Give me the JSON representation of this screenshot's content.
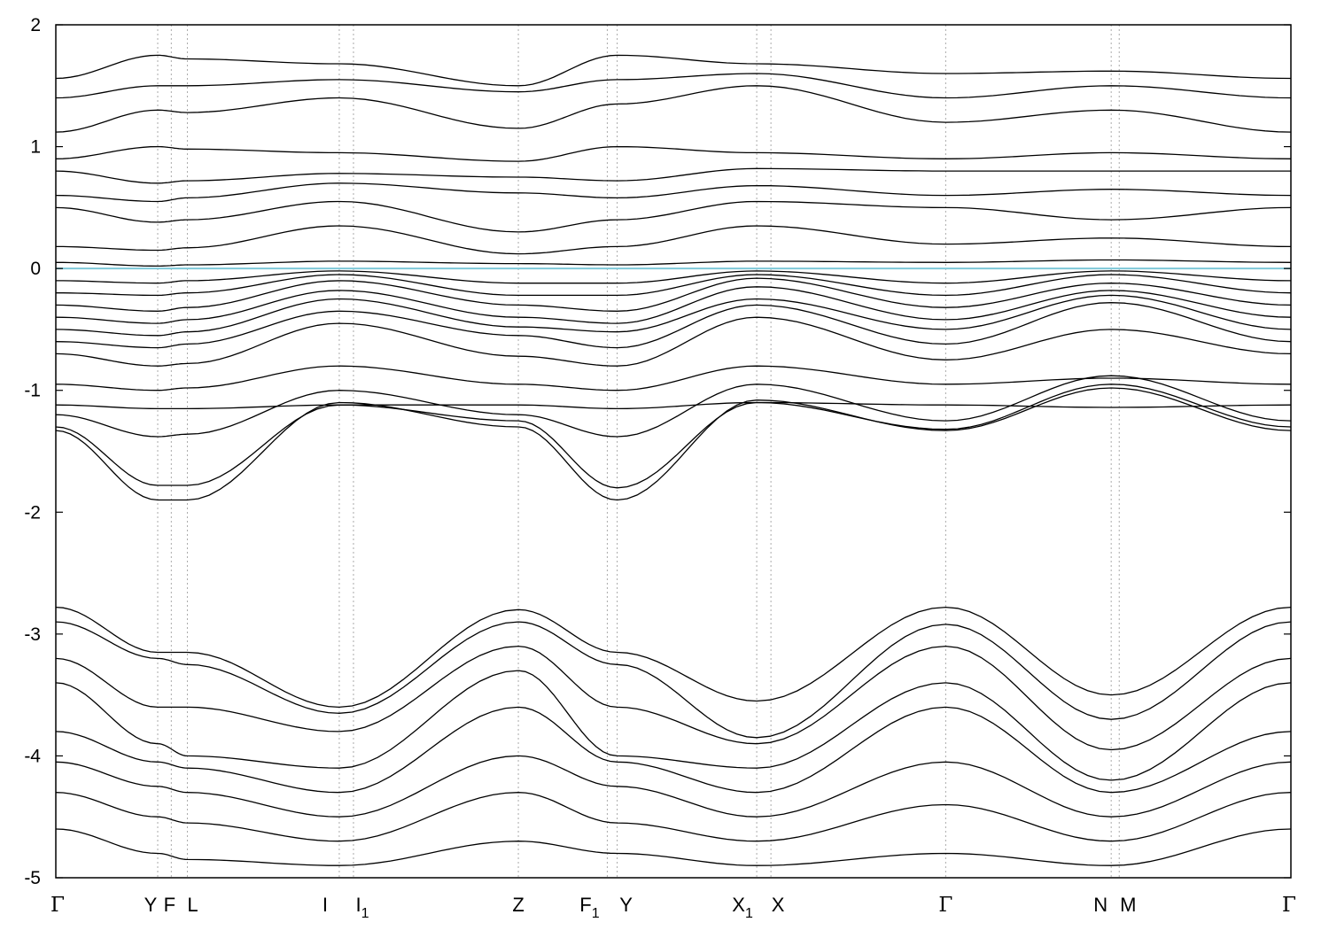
{
  "chart_data": {
    "type": "line",
    "title": "",
    "xlabel": "",
    "ylabel": "",
    "ylim": [
      -5,
      2
    ],
    "y_ticks": [
      "2",
      "1",
      "0",
      "-1",
      "-2",
      "-3",
      "-4",
      "-5"
    ],
    "y_tick_values": [
      2,
      1,
      0,
      -1,
      -2,
      -3,
      -4,
      -5
    ],
    "grid": "vertical dashed lines at high-symmetry k-points",
    "line_color": "#000000",
    "fermi_line_color": "#7ec8d8",
    "fermi_level": 0.0,
    "kpoints": [
      {
        "main": "Γ",
        "sub": "",
        "x": 0.0
      },
      {
        "main": "Y",
        "sub": "",
        "x": 0.0825
      },
      {
        "main": "F",
        "sub": "",
        "x": 0.0935
      },
      {
        "main": "L",
        "sub": "",
        "x": 0.1065
      },
      {
        "main": "I",
        "sub": "",
        "x": 0.2295
      },
      {
        "main": "I",
        "sub": "1",
        "x": 0.241
      },
      {
        "main": "Z",
        "sub": "",
        "x": 0.3745
      },
      {
        "main": "F",
        "sub": "1",
        "x": 0.4465
      },
      {
        "main": "Y",
        "sub": "",
        "x": 0.4545
      },
      {
        "main": "X",
        "sub": "1",
        "x": 0.5675
      },
      {
        "main": "X",
        "sub": "",
        "x": 0.579
      },
      {
        "main": "Γ",
        "sub": "",
        "x": 0.7205
      },
      {
        "main": "N",
        "sub": "",
        "x": 0.8545
      },
      {
        "main": "M",
        "sub": "",
        "x": 0.861
      },
      {
        "main": "Γ",
        "sub": "",
        "x": 1.0
      }
    ],
    "series": [
      {
        "x": [
          0,
          0.0825,
          0.1065,
          0.2295,
          0.3745,
          0.4545,
          0.5675,
          0.7205,
          0.8545,
          1.0
        ],
        "values": [
          -1.3,
          -1.78,
          -1.78,
          -1.12,
          -1.25,
          -1.8,
          -1.1,
          -1.32,
          -0.95,
          -1.3
        ]
      },
      {
        "x": [
          0,
          0.0825,
          0.1065,
          0.2295,
          0.3745,
          0.4545,
          0.5675,
          0.7205,
          0.8545,
          1.0
        ],
        "values": [
          -1.33,
          -1.9,
          -1.9,
          -1.1,
          -1.3,
          -1.9,
          -1.08,
          -1.33,
          -0.98,
          -1.33
        ]
      },
      {
        "x": [
          0,
          0.0825,
          0.1065,
          0.2295,
          0.3745,
          0.4545,
          0.5675,
          0.7205,
          0.8545,
          1.0
        ],
        "values": [
          -1.2,
          -1.38,
          -1.36,
          -1.0,
          -1.2,
          -1.38,
          -0.95,
          -1.25,
          -0.88,
          -1.25
        ]
      },
      {
        "x": [
          0,
          0.0825,
          0.1065,
          0.2295,
          0.3745,
          0.4545,
          0.5675,
          0.7205,
          0.8545,
          1.0
        ],
        "values": [
          -1.12,
          -1.15,
          -1.15,
          -1.12,
          -1.12,
          -1.15,
          -1.1,
          -1.12,
          -1.14,
          -1.12
        ]
      },
      {
        "x": [
          0,
          0.0825,
          0.1065,
          0.2295,
          0.3745,
          0.4545,
          0.5675,
          0.7205,
          0.8545,
          1.0
        ],
        "values": [
          -0.95,
          -1.0,
          -0.98,
          -0.8,
          -0.95,
          -1.0,
          -0.8,
          -0.95,
          -0.9,
          -0.95
        ]
      },
      {
        "x": [
          0,
          0.0825,
          0.1065,
          0.2295,
          0.3745,
          0.4545,
          0.5675,
          0.7205,
          0.8545,
          1.0
        ],
        "values": [
          -0.7,
          -0.8,
          -0.78,
          -0.45,
          -0.72,
          -0.8,
          -0.4,
          -0.75,
          -0.5,
          -0.7
        ]
      },
      {
        "x": [
          0,
          0.0825,
          0.1065,
          0.2295,
          0.3745,
          0.4545,
          0.5675,
          0.7205,
          0.8545,
          1.0
        ],
        "values": [
          -0.6,
          -0.65,
          -0.62,
          -0.35,
          -0.55,
          -0.65,
          -0.3,
          -0.62,
          -0.28,
          -0.6
        ]
      },
      {
        "x": [
          0,
          0.0825,
          0.1065,
          0.2295,
          0.3745,
          0.4545,
          0.5675,
          0.7205,
          0.8545,
          1.0
        ],
        "values": [
          -0.5,
          -0.55,
          -0.52,
          -0.25,
          -0.48,
          -0.52,
          -0.25,
          -0.5,
          -0.22,
          -0.5
        ]
      },
      {
        "x": [
          0,
          0.0825,
          0.1065,
          0.2295,
          0.3745,
          0.4545,
          0.5675,
          0.7205,
          0.8545,
          1.0
        ],
        "values": [
          -0.4,
          -0.45,
          -0.42,
          -0.18,
          -0.4,
          -0.45,
          -0.15,
          -0.42,
          -0.18,
          -0.4
        ]
      },
      {
        "x": [
          0,
          0.0825,
          0.1065,
          0.2295,
          0.3745,
          0.4545,
          0.5675,
          0.7205,
          0.8545,
          1.0
        ],
        "values": [
          -0.3,
          -0.35,
          -0.32,
          -0.1,
          -0.3,
          -0.35,
          -0.08,
          -0.32,
          -0.12,
          -0.3
        ]
      },
      {
        "x": [
          0,
          0.0825,
          0.1065,
          0.2295,
          0.3745,
          0.4545,
          0.5675,
          0.7205,
          0.8545,
          1.0
        ],
        "values": [
          -0.2,
          -0.22,
          -0.2,
          -0.05,
          -0.22,
          -0.22,
          -0.05,
          -0.22,
          -0.05,
          -0.2
        ]
      },
      {
        "x": [
          0,
          0.0825,
          0.1065,
          0.2295,
          0.3745,
          0.4545,
          0.5675,
          0.7205,
          0.8545,
          1.0
        ],
        "values": [
          -0.1,
          -0.12,
          -0.1,
          -0.02,
          -0.12,
          -0.12,
          -0.02,
          -0.12,
          -0.02,
          -0.1
        ]
      },
      {
        "x": [
          0,
          0.0825,
          0.1065,
          0.2295,
          0.3745,
          0.4545,
          0.5675,
          0.7205,
          0.8545,
          1.0
        ],
        "values": [
          0.05,
          0.02,
          0.03,
          0.06,
          0.04,
          0.03,
          0.06,
          0.05,
          0.07,
          0.05
        ]
      },
      {
        "x": [
          0,
          0.0825,
          0.1065,
          0.2295,
          0.3745,
          0.4545,
          0.5675,
          0.7205,
          0.8545,
          1.0
        ],
        "values": [
          0.18,
          0.15,
          0.17,
          0.35,
          0.12,
          0.18,
          0.35,
          0.2,
          0.25,
          0.18
        ]
      },
      {
        "x": [
          0,
          0.0825,
          0.1065,
          0.2295,
          0.3745,
          0.4545,
          0.5675,
          0.7205,
          0.8545,
          1.0
        ],
        "values": [
          0.5,
          0.38,
          0.4,
          0.55,
          0.3,
          0.4,
          0.55,
          0.5,
          0.4,
          0.5
        ]
      },
      {
        "x": [
          0,
          0.0825,
          0.1065,
          0.2295,
          0.3745,
          0.4545,
          0.5675,
          0.7205,
          0.8545,
          1.0
        ],
        "values": [
          0.6,
          0.55,
          0.58,
          0.7,
          0.62,
          0.58,
          0.68,
          0.6,
          0.65,
          0.6
        ]
      },
      {
        "x": [
          0,
          0.0825,
          0.1065,
          0.2295,
          0.3745,
          0.4545,
          0.5675,
          0.7205,
          0.8545,
          1.0
        ],
        "values": [
          0.8,
          0.7,
          0.72,
          0.78,
          0.75,
          0.72,
          0.82,
          0.8,
          0.8,
          0.8
        ]
      },
      {
        "x": [
          0,
          0.0825,
          0.1065,
          0.2295,
          0.3745,
          0.4545,
          0.5675,
          0.7205,
          0.8545,
          1.0
        ],
        "values": [
          0.9,
          1.0,
          0.98,
          0.95,
          0.88,
          1.0,
          0.95,
          0.9,
          0.95,
          0.9
        ]
      },
      {
        "x": [
          0,
          0.0825,
          0.1065,
          0.2295,
          0.3745,
          0.4545,
          0.5675,
          0.7205,
          0.8545,
          1.0
        ],
        "values": [
          1.12,
          1.3,
          1.28,
          1.4,
          1.15,
          1.35,
          1.5,
          1.2,
          1.3,
          1.12
        ]
      },
      {
        "x": [
          0,
          0.0825,
          0.1065,
          0.2295,
          0.3745,
          0.4545,
          0.5675,
          0.7205,
          0.8545,
          1.0
        ],
        "values": [
          1.4,
          1.5,
          1.5,
          1.55,
          1.45,
          1.55,
          1.6,
          1.4,
          1.5,
          1.4
        ]
      },
      {
        "x": [
          0,
          0.0825,
          0.1065,
          0.2295,
          0.3745,
          0.4545,
          0.5675,
          0.7205,
          0.8545,
          1.0
        ],
        "values": [
          1.56,
          1.75,
          1.72,
          1.68,
          1.5,
          1.75,
          1.68,
          1.6,
          1.62,
          1.56
        ]
      },
      {
        "x": [
          0,
          0.0825,
          0.1065,
          0.2295,
          0.3745,
          0.4545,
          0.5675,
          0.7205,
          0.8545,
          1.0
        ],
        "values": [
          -2.78,
          -3.15,
          -3.15,
          -3.6,
          -2.8,
          -3.15,
          -3.55,
          -2.78,
          -3.5,
          -2.78
        ]
      },
      {
        "x": [
          0,
          0.0825,
          0.1065,
          0.2295,
          0.3745,
          0.4545,
          0.5675,
          0.7205,
          0.8545,
          1.0
        ],
        "values": [
          -2.9,
          -3.2,
          -3.25,
          -3.65,
          -2.9,
          -3.25,
          -3.85,
          -2.92,
          -3.7,
          -2.9
        ]
      },
      {
        "x": [
          0,
          0.0825,
          0.1065,
          0.2295,
          0.3745,
          0.4545,
          0.5675,
          0.7205,
          0.8545,
          1.0
        ],
        "values": [
          -3.2,
          -3.6,
          -3.6,
          -3.8,
          -3.1,
          -3.6,
          -3.9,
          -3.1,
          -3.95,
          -3.2
        ]
      },
      {
        "x": [
          0,
          0.0825,
          0.1065,
          0.2295,
          0.3745,
          0.4545,
          0.5675,
          0.7205,
          0.8545,
          1.0
        ],
        "values": [
          -3.4,
          -3.9,
          -4.0,
          -4.1,
          -3.3,
          -4.0,
          -4.1,
          -3.4,
          -4.2,
          -3.4
        ]
      },
      {
        "x": [
          0,
          0.0825,
          0.1065,
          0.2295,
          0.3745,
          0.4545,
          0.5675,
          0.7205,
          0.8545,
          1.0
        ],
        "values": [
          -3.8,
          -4.05,
          -4.1,
          -4.3,
          -3.6,
          -4.05,
          -4.3,
          -3.6,
          -4.3,
          -3.8
        ]
      },
      {
        "x": [
          0,
          0.0825,
          0.1065,
          0.2295,
          0.3745,
          0.4545,
          0.5675,
          0.7205,
          0.8545,
          1.0
        ],
        "values": [
          -4.05,
          -4.25,
          -4.3,
          -4.5,
          -4.0,
          -4.25,
          -4.5,
          -4.05,
          -4.5,
          -4.05
        ]
      },
      {
        "x": [
          0,
          0.0825,
          0.1065,
          0.2295,
          0.3745,
          0.4545,
          0.5675,
          0.7205,
          0.8545,
          1.0
        ],
        "values": [
          -4.3,
          -4.5,
          -4.55,
          -4.7,
          -4.3,
          -4.55,
          -4.7,
          -4.4,
          -4.7,
          -4.3
        ]
      },
      {
        "x": [
          0,
          0.0825,
          0.1065,
          0.2295,
          0.3745,
          0.4545,
          0.5675,
          0.7205,
          0.8545,
          1.0
        ],
        "values": [
          -4.6,
          -4.8,
          -4.85,
          -4.9,
          -4.7,
          -4.8,
          -4.9,
          -4.8,
          -4.9,
          -4.6
        ]
      }
    ]
  }
}
